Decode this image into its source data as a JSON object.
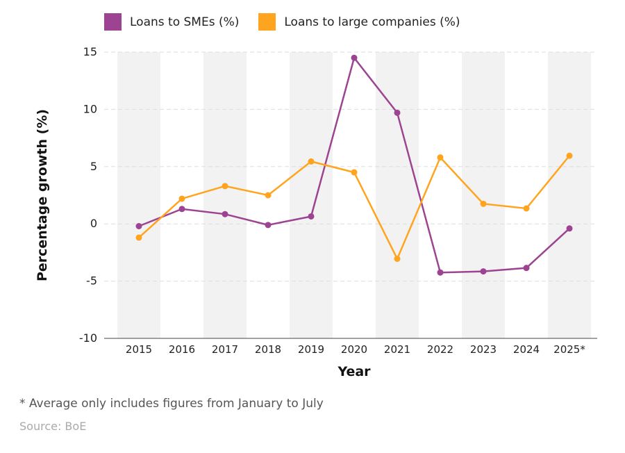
{
  "chart_data": {
    "type": "line",
    "xlabel": "Year",
    "ylabel": "Percentage growth (%)",
    "categories": [
      "2015",
      "2016",
      "2017",
      "2018",
      "2019",
      "2020",
      "2021",
      "2022",
      "2023",
      "2024",
      "2025*"
    ],
    "ylim": [
      -10,
      15
    ],
    "yticks": [
      15,
      10,
      5,
      0,
      -5,
      -10
    ],
    "grid": true,
    "legend_position": "top",
    "series": [
      {
        "name": "Loans to SMEs (%)",
        "color": "#9c4391",
        "values": [
          -0.2,
          1.3,
          0.85,
          -0.1,
          0.65,
          14.5,
          9.7,
          -4.25,
          -4.15,
          -3.85,
          -0.4
        ]
      },
      {
        "name": "Loans to large companies (%)",
        "color": "#ffa41e",
        "values": [
          -1.2,
          2.2,
          3.3,
          2.5,
          5.45,
          4.5,
          -3.05,
          5.8,
          1.75,
          1.35,
          5.95
        ]
      }
    ]
  },
  "footnote": "* Average only includes figures from January to July",
  "source": "Source: BoE"
}
